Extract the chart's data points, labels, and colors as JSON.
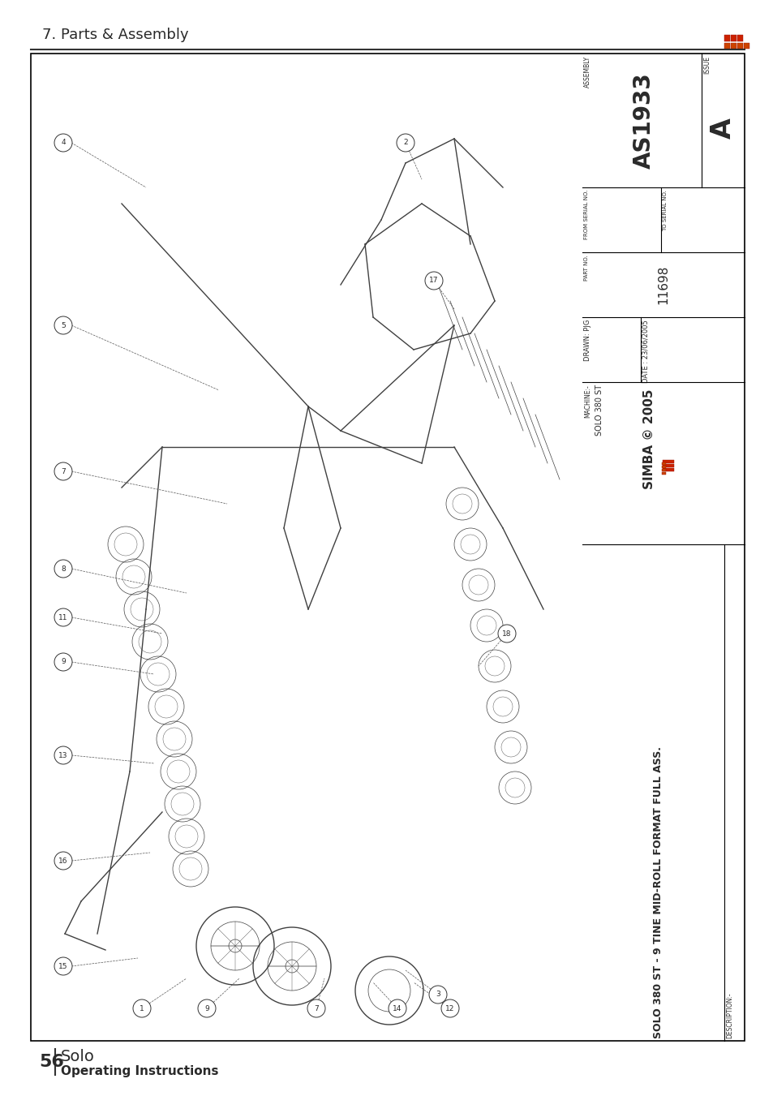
{
  "title_header": "7. Parts & Assembly",
  "page_number": "56",
  "book_title": "Solo",
  "book_subtitle": "Operating Instructions",
  "drawing_number": "AS1933",
  "issue": "A",
  "assembly_label": "ASSEMBLY",
  "part_no": "11698",
  "from_serial": "",
  "to_serial": "",
  "drawn": "PJG",
  "date": "23/06/2005",
  "copyright": "SIMBA © 2005",
  "machine": "SOLO 380 ST",
  "description": "SOLO 380 ST - 9 TINE MID-ROLL FORMAT FULL ASS.",
  "bg_color": "#ffffff",
  "border_color": "#000000",
  "header_line_color": "#333333",
  "text_color": "#2a2a2a",
  "title_fontsize": 13,
  "footer_number_fontsize": 16,
  "footer_title_fontsize": 14,
  "footer_subtitle_fontsize": 11,
  "callouts": [
    [
      78,
      1175,
      "4"
    ],
    [
      78,
      950,
      "5"
    ],
    [
      78,
      770,
      "7"
    ],
    [
      78,
      650,
      "8"
    ],
    [
      78,
      590,
      "11"
    ],
    [
      78,
      535,
      "9"
    ],
    [
      78,
      420,
      "13"
    ],
    [
      78,
      290,
      "16"
    ],
    [
      78,
      160,
      "15"
    ],
    [
      175,
      108,
      "1"
    ],
    [
      255,
      108,
      "9"
    ],
    [
      390,
      108,
      "7"
    ],
    [
      490,
      108,
      "14"
    ],
    [
      555,
      108,
      "12"
    ],
    [
      625,
      570,
      "18"
    ],
    [
      500,
      1175,
      "2"
    ],
    [
      535,
      1005,
      "17"
    ],
    [
      540,
      125,
      "3"
    ]
  ]
}
